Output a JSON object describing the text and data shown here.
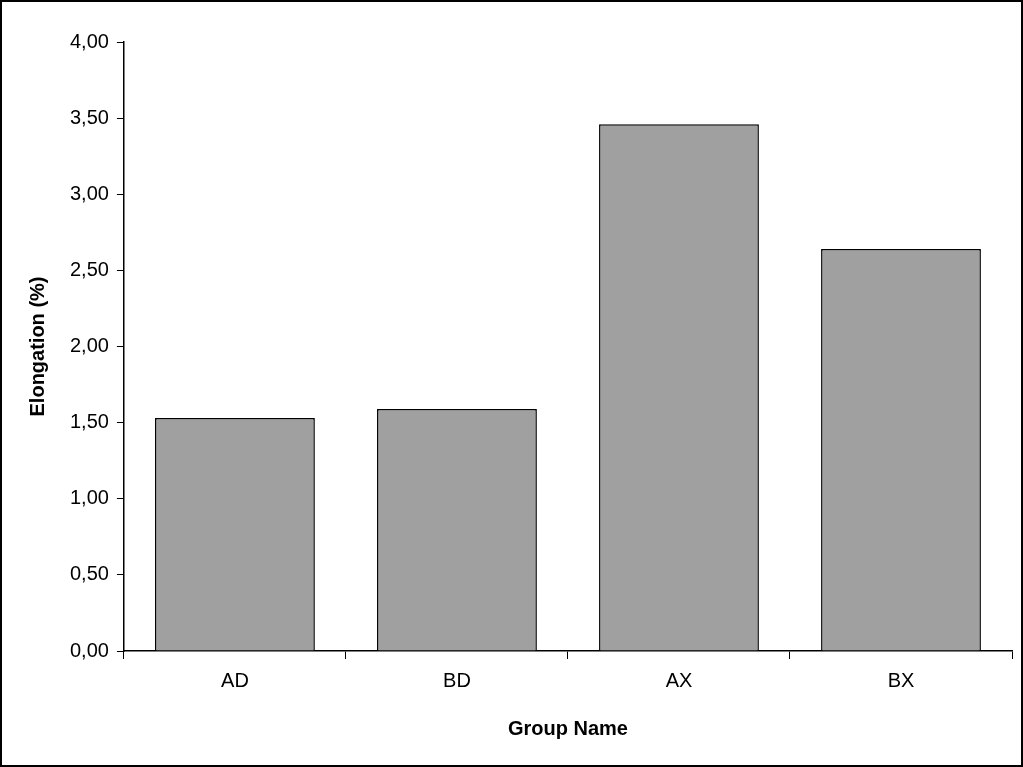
{
  "chart_data": {
    "type": "bar",
    "xlabel": "Group Name",
    "ylabel": "Elongation (%)",
    "categories": [
      "AD",
      "BD",
      "AX",
      "BX"
    ],
    "values": [
      1.53,
      1.59,
      3.46,
      2.64
    ],
    "color": "#a0a0a0",
    "ylim": [
      0,
      4
    ],
    "yticks": [
      {
        "value": 0,
        "label": "0,00"
      },
      {
        "value": 0.5,
        "label": "0,50"
      },
      {
        "value": 1,
        "label": "1,00"
      },
      {
        "value": 1.5,
        "label": "1,50"
      },
      {
        "value": 2,
        "label": "2,00"
      },
      {
        "value": 2.5,
        "label": "2,50"
      },
      {
        "value": 3,
        "label": "3,00"
      },
      {
        "value": 3.5,
        "label": "3,50"
      },
      {
        "value": 4,
        "label": "4,00"
      }
    ],
    "grid": false,
    "legend": false
  }
}
